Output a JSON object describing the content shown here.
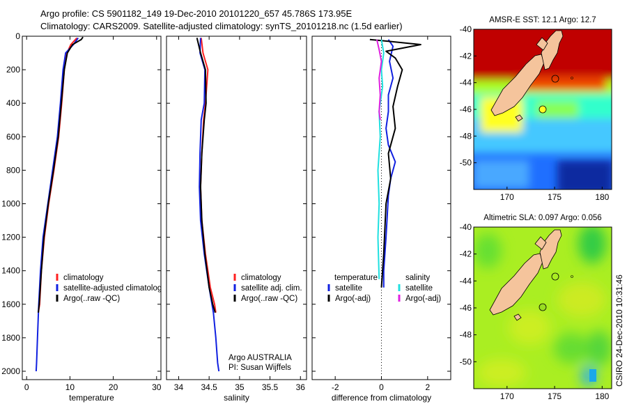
{
  "header": {
    "line1": "Argo profile: CS 5901182_149 19-Dec-2010 20101220_657 45.786S 173.95E",
    "line2": "Climatology: CARS2009. Satellite-adjusted climatology: synTS_20101218.nc (1.5d earlier)"
  },
  "credit": {
    "line1": "Argo AUSTRALIA",
    "line2": "PI: Susan Wijffels"
  },
  "timestamp": "CSIRO 24-Dec-2010 10:31:46",
  "colors": {
    "climatology": "#ff2020",
    "satellite": "#1020e0",
    "argo": "#000000",
    "satellite_salinity": "#20e0e0",
    "argo_salinity": "#e020e0",
    "land": "#f5c49c"
  },
  "chart_data": [
    {
      "type": "line",
      "xlabel": "temperature",
      "ylabel": "",
      "xlim": [
        -1,
        31
      ],
      "ylim": [
        0,
        2050
      ],
      "y_inverted": true,
      "x_ticks": [
        0,
        10,
        20,
        30
      ],
      "y_ticks": [
        0,
        200,
        400,
        600,
        800,
        1000,
        1200,
        1400,
        1600,
        1800,
        2000
      ],
      "legend": [
        "climatology",
        "satellite-adjusted climatolog",
        "Argo(..raw -QC)"
      ],
      "legend_placement": "lower-right",
      "series": [
        {
          "name": "climatology",
          "color": "#ff2020",
          "x": [
            11.6,
            10.2,
            9.3,
            8.7,
            8.1,
            7.4,
            6.3,
            5.1,
            4.1,
            3.4,
            3.0,
            2.7
          ],
          "y": [
            10,
            50,
            100,
            200,
            400,
            600,
            800,
            1000,
            1200,
            1400,
            1600,
            1650
          ]
        },
        {
          "name": "satellite-adjusted climatolog",
          "color": "#1020e0",
          "x": [
            11.9,
            10.8,
            9.0,
            8.4,
            7.8,
            7.1,
            6.0,
            4.9,
            3.8,
            3.2,
            2.8,
            2.5,
            2.3,
            2.2
          ],
          "y": [
            10,
            50,
            100,
            200,
            400,
            600,
            800,
            1000,
            1200,
            1400,
            1600,
            1800,
            1950,
            2000
          ]
        },
        {
          "name": "Argo(..raw -QC)",
          "color": "#000000",
          "x": [
            13.0,
            12.6,
            10.6,
            9.4,
            8.7,
            8.0,
            7.3,
            6.2,
            5.0,
            4.0,
            3.4,
            2.9,
            2.7
          ],
          "y": [
            5,
            20,
            50,
            100,
            200,
            400,
            600,
            800,
            1000,
            1200,
            1400,
            1600,
            1650
          ]
        }
      ]
    },
    {
      "type": "line",
      "xlabel": "salinity",
      "ylabel": "",
      "xlim": [
        33.8,
        36.1
      ],
      "ylim": [
        0,
        2050
      ],
      "y_inverted": true,
      "x_ticks": [
        34,
        34.5,
        35,
        35.5,
        36
      ],
      "y_ticks": [
        0,
        200,
        400,
        600,
        800,
        1000,
        1200,
        1400,
        1600,
        1800,
        2000
      ],
      "legend": [
        "climatology",
        "satellite adj. clim.",
        "Argo(..raw -QC)"
      ],
      "legend_placement": "lower-right",
      "series": [
        {
          "name": "climatology",
          "color": "#ff2020",
          "x": [
            34.37,
            34.4,
            34.48,
            34.44,
            34.41,
            34.38,
            34.36,
            34.38,
            34.44,
            34.52,
            34.59,
            34.61
          ],
          "y": [
            10,
            100,
            200,
            400,
            500,
            700,
            900,
            1100,
            1300,
            1500,
            1600,
            1650
          ]
        },
        {
          "name": "satellite adj. clim.",
          "color": "#1020e0",
          "x": [
            34.36,
            34.35,
            34.43,
            34.42,
            34.37,
            34.35,
            34.34,
            34.36,
            34.42,
            34.5,
            34.57,
            34.61,
            34.64,
            34.66
          ],
          "y": [
            10,
            100,
            200,
            400,
            500,
            700,
            900,
            1100,
            1300,
            1500,
            1650,
            1800,
            1950,
            2000
          ]
        },
        {
          "name": "Argo(..raw -QC)",
          "color": "#000000",
          "x": [
            34.3,
            34.36,
            34.44,
            34.45,
            34.42,
            34.38,
            34.36,
            34.38,
            34.43,
            34.5,
            34.56,
            34.6
          ],
          "y": [
            10,
            100,
            200,
            400,
            500,
            700,
            900,
            1100,
            1300,
            1500,
            1600,
            1650
          ]
        }
      ]
    },
    {
      "type": "line",
      "xlabel": "difference from climatology",
      "ylabel": "",
      "xlim": [
        -3,
        3
      ],
      "ylim": [
        0,
        2050
      ],
      "y_inverted": true,
      "x_ticks": [
        -2,
        0,
        2
      ],
      "y_ticks": [
        0,
        200,
        400,
        600,
        800,
        1000,
        1200,
        1400,
        1600,
        1800,
        2000
      ],
      "legend_columns": [
        {
          "title": "temperature",
          "entries": [
            "satellite",
            "Argo(-adj)"
          ]
        },
        {
          "title": "salinity",
          "entries": [
            "satellite",
            "Argo(-adj)"
          ]
        }
      ],
      "legend_placement": "lower",
      "series": [
        {
          "name": "satellite",
          "group": "temperature",
          "color": "#1020e0",
          "x": [
            0.3,
            0.5,
            0.35,
            0.5,
            0.3,
            0.3,
            0.2,
            0.3,
            0.6,
            0.4,
            0.3,
            0.2,
            0.1,
            0.1
          ],
          "y": [
            20,
            60,
            150,
            250,
            350,
            450,
            550,
            650,
            750,
            850,
            950,
            1200,
            1400,
            1500
          ]
        },
        {
          "name": "Argo(-adj)",
          "group": "temperature",
          "color": "#000000",
          "x": [
            -0.5,
            0.3,
            1.7,
            0.2,
            0.6,
            0.9,
            0.7,
            0.5,
            0.6,
            0.3,
            0.4,
            0.2,
            0.1,
            0.0
          ],
          "y": [
            20,
            30,
            50,
            90,
            130,
            200,
            300,
            420,
            550,
            700,
            850,
            1000,
            1300,
            1500
          ]
        },
        {
          "name": "satellite",
          "group": "salinity",
          "color": "#20e0e0",
          "x": [
            0.0,
            0.1,
            0.0,
            0.05,
            -0.1,
            -0.05,
            -0.15,
            -0.1,
            -0.15,
            -0.1
          ],
          "y": [
            20,
            100,
            200,
            300,
            450,
            600,
            800,
            1000,
            1200,
            1450
          ]
        },
        {
          "name": "Argo(-adj)",
          "group": "salinity",
          "color": "#e020e0",
          "x": [
            -0.2,
            -0.1,
            0.0,
            -0.1,
            -0.05,
            -0.1,
            -0.05
          ],
          "y": [
            20,
            80,
            150,
            250,
            350,
            450,
            500
          ]
        }
      ]
    },
    {
      "type": "heatmap",
      "title": "AMSR-E SST: 12.1  Argo: 12.7",
      "xlim": [
        166.5,
        181
      ],
      "ylim": [
        -52,
        -40
      ],
      "x_ticks": [
        170,
        175,
        180
      ],
      "y_ticks": [
        -40,
        -42,
        -44,
        -46,
        -48,
        -50
      ],
      "argo_marker": {
        "lon": 173.95,
        "lat": -45.786
      }
    },
    {
      "type": "heatmap",
      "title": "Altimetric SLA: 0.097  Argo: 0.056",
      "xlim": [
        166.5,
        181
      ],
      "ylim": [
        -52,
        -40
      ],
      "x_ticks": [
        170,
        175,
        180
      ],
      "y_ticks": [
        -40,
        -42,
        -44,
        -46,
        -48,
        -50
      ],
      "argo_marker": {
        "lon": 173.95,
        "lat": -45.786
      }
    }
  ]
}
